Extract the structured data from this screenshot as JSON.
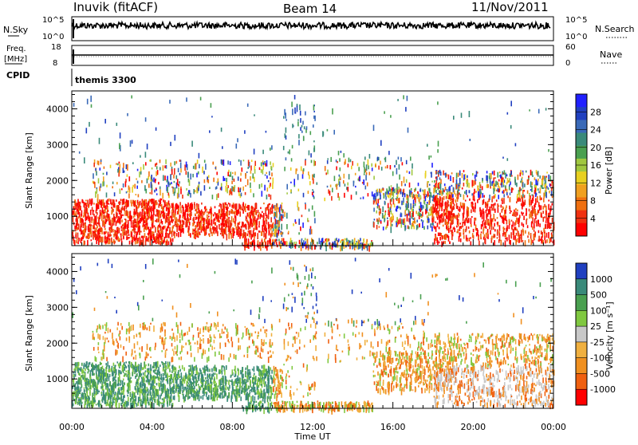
{
  "header": {
    "station": "Inuvik (fitACF)",
    "beam": "Beam 14",
    "date": "11/Nov/2011"
  },
  "noise_panel": {
    "left_label": "N.Sky",
    "left_ticks": [
      "10^5",
      "10^0"
    ],
    "right_ticks": [
      "10^5",
      "10^0"
    ],
    "right_label": "N.Search"
  },
  "freq_panel": {
    "left_label_top": "Freq.",
    "left_label_bottom": "[MHz]",
    "left_ticks": [
      "18",
      "8"
    ],
    "right_ticks": [
      "60",
      "0"
    ],
    "right_label": "Nave"
  },
  "cpid_panel": {
    "label": "CPID",
    "value": "themis 3300"
  },
  "chart_data": [
    {
      "type": "heatmap",
      "name": "power-range-time",
      "ylabel": "Slant Range [km]",
      "ylim": [
        180,
        4500
      ],
      "yticks": [
        "1000",
        "2000",
        "3000",
        "4000"
      ],
      "xlim_hours": [
        0,
        24
      ],
      "colorbar": {
        "label": "Power [dB]",
        "ticks": [
          "28",
          "24",
          "20",
          "16",
          "12",
          "8",
          "4"
        ],
        "colors": [
          "#2020ff",
          "#2040c0",
          "#3a6ab8",
          "#3a8a7a",
          "#4aa050",
          "#a0c840",
          "#e8d020",
          "#f0a020",
          "#f07010",
          "#f03010",
          "#ff0000"
        ]
      }
    },
    {
      "type": "heatmap",
      "name": "velocity-range-time",
      "ylabel": "Slant Range [km]",
      "ylim": [
        180,
        4500
      ],
      "yticks": [
        "1000",
        "2000",
        "3000",
        "4000"
      ],
      "xlim_hours": [
        0,
        24
      ],
      "xlabel": "Time UT",
      "xticks": [
        "00:00",
        "04:00",
        "08:00",
        "12:00",
        "16:00",
        "20:00",
        "00:00"
      ],
      "colorbar": {
        "label": "Velocity [m s⁻¹]",
        "ticks": [
          "1000",
          "500",
          "100",
          "25",
          "-25",
          "-100",
          "-500",
          "-1000"
        ],
        "colors": [
          "#2040c0",
          "#3a8a7a",
          "#4aa050",
          "#80c840",
          "#c8c8c8",
          "#f0b040",
          "#f09020",
          "#f06010",
          "#ff0000"
        ]
      }
    }
  ]
}
